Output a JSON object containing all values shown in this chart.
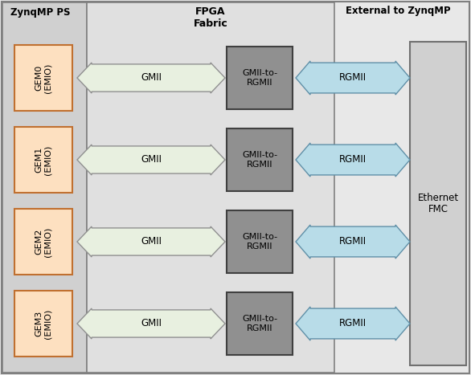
{
  "fig_width": 5.86,
  "fig_height": 4.67,
  "dpi": 100,
  "outer_bg": "#e8e8e8",
  "ps_bg": "#d0d0d0",
  "ps_edge": "#808080",
  "fpga_bg": "#e0e0e0",
  "fpga_edge": "#808080",
  "ext_bg": "#f0f0f0",
  "gem_fill": "#fde0c0",
  "gem_edge": "#c07030",
  "gmii_arrow_fill": "#e8f0e0",
  "gmii_arrow_edge": "#909090",
  "gr_fill": "#909090",
  "gr_edge": "#404040",
  "rgmii_fill": "#b8dce8",
  "rgmii_edge": "#6090a8",
  "efmc_fill": "#d0d0d0",
  "efmc_edge": "#707070",
  "gem_labels": [
    "GEM0\n(EMIO)",
    "GEM1\n(EMIO)",
    "GEM2\n(EMIO)",
    "GEM3\n(EMIO)"
  ],
  "ps_label": "ZynqMP PS",
  "fpga_label": "FPGA\nFabric",
  "ext_label": "External to ZynqMP",
  "gmii_label": "GMII",
  "gr_label": "GMII-to-\nRGMII",
  "rgmii_label": "RGMII",
  "efmc_label": "Ethernet\nFMC"
}
